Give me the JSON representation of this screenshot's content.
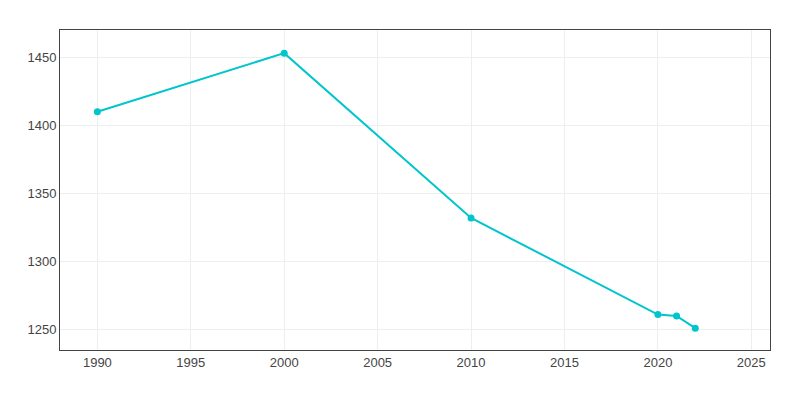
{
  "chart_data": {
    "type": "line",
    "x": [
      1990,
      2000,
      2010,
      2020,
      2021,
      2022
    ],
    "values": [
      1410,
      1453,
      1332,
      1261,
      1260,
      1251
    ],
    "color": "#00C5CD",
    "marker": "circle",
    "xlim": [
      1988,
      2026
    ],
    "ylim": [
      1235,
      1470
    ],
    "xticks": [
      1990,
      1995,
      2000,
      2005,
      2010,
      2015,
      2020,
      2025
    ],
    "yticks": [
      1250,
      1300,
      1350,
      1400,
      1450
    ],
    "grid": true
  }
}
